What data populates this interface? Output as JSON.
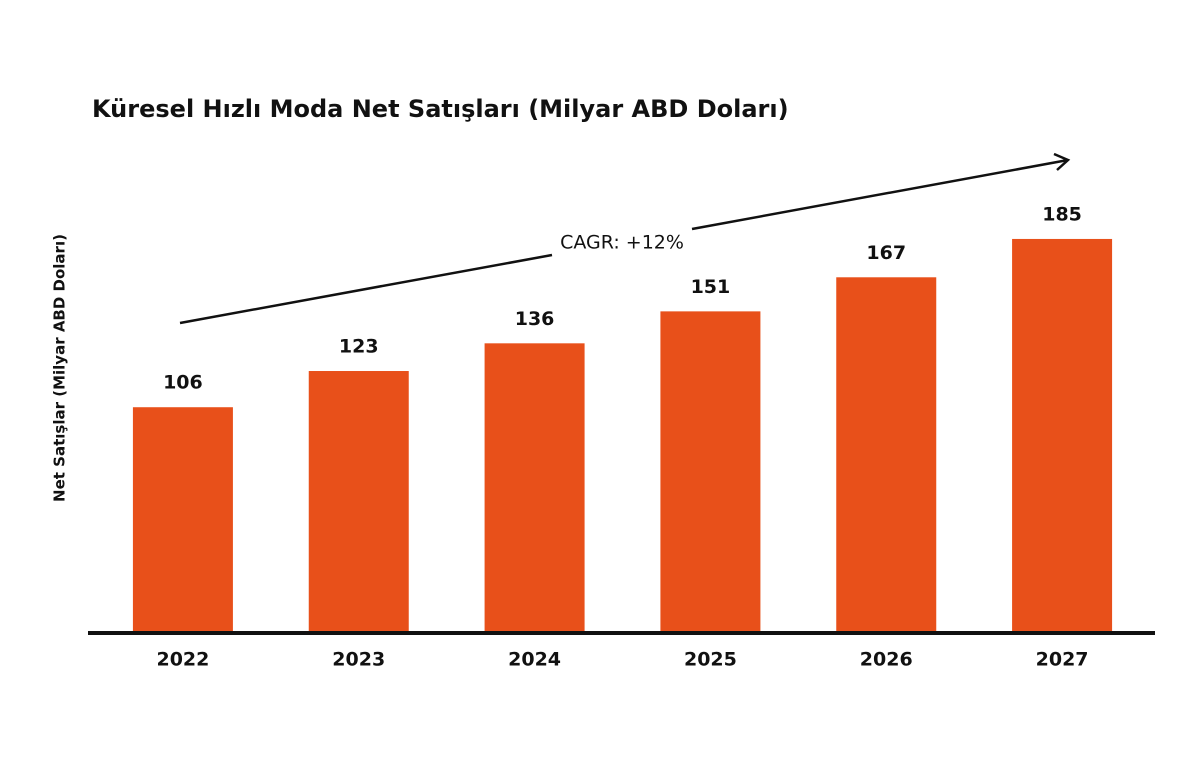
{
  "chart_data": {
    "type": "bar",
    "title": "Küresel Hızlı Moda Net Satışları (Milyar ABD Doları)",
    "y_label": "Net Satışlar (Milyar ABD Doları)",
    "annotation": "CAGR: +12%",
    "categories": [
      "2022",
      "2023",
      "2024",
      "2025",
      "2026",
      "2027"
    ],
    "values": [
      106,
      123,
      136,
      151,
      167,
      185
    ],
    "color": "#e8501a",
    "ylim": [
      0,
      200
    ]
  }
}
